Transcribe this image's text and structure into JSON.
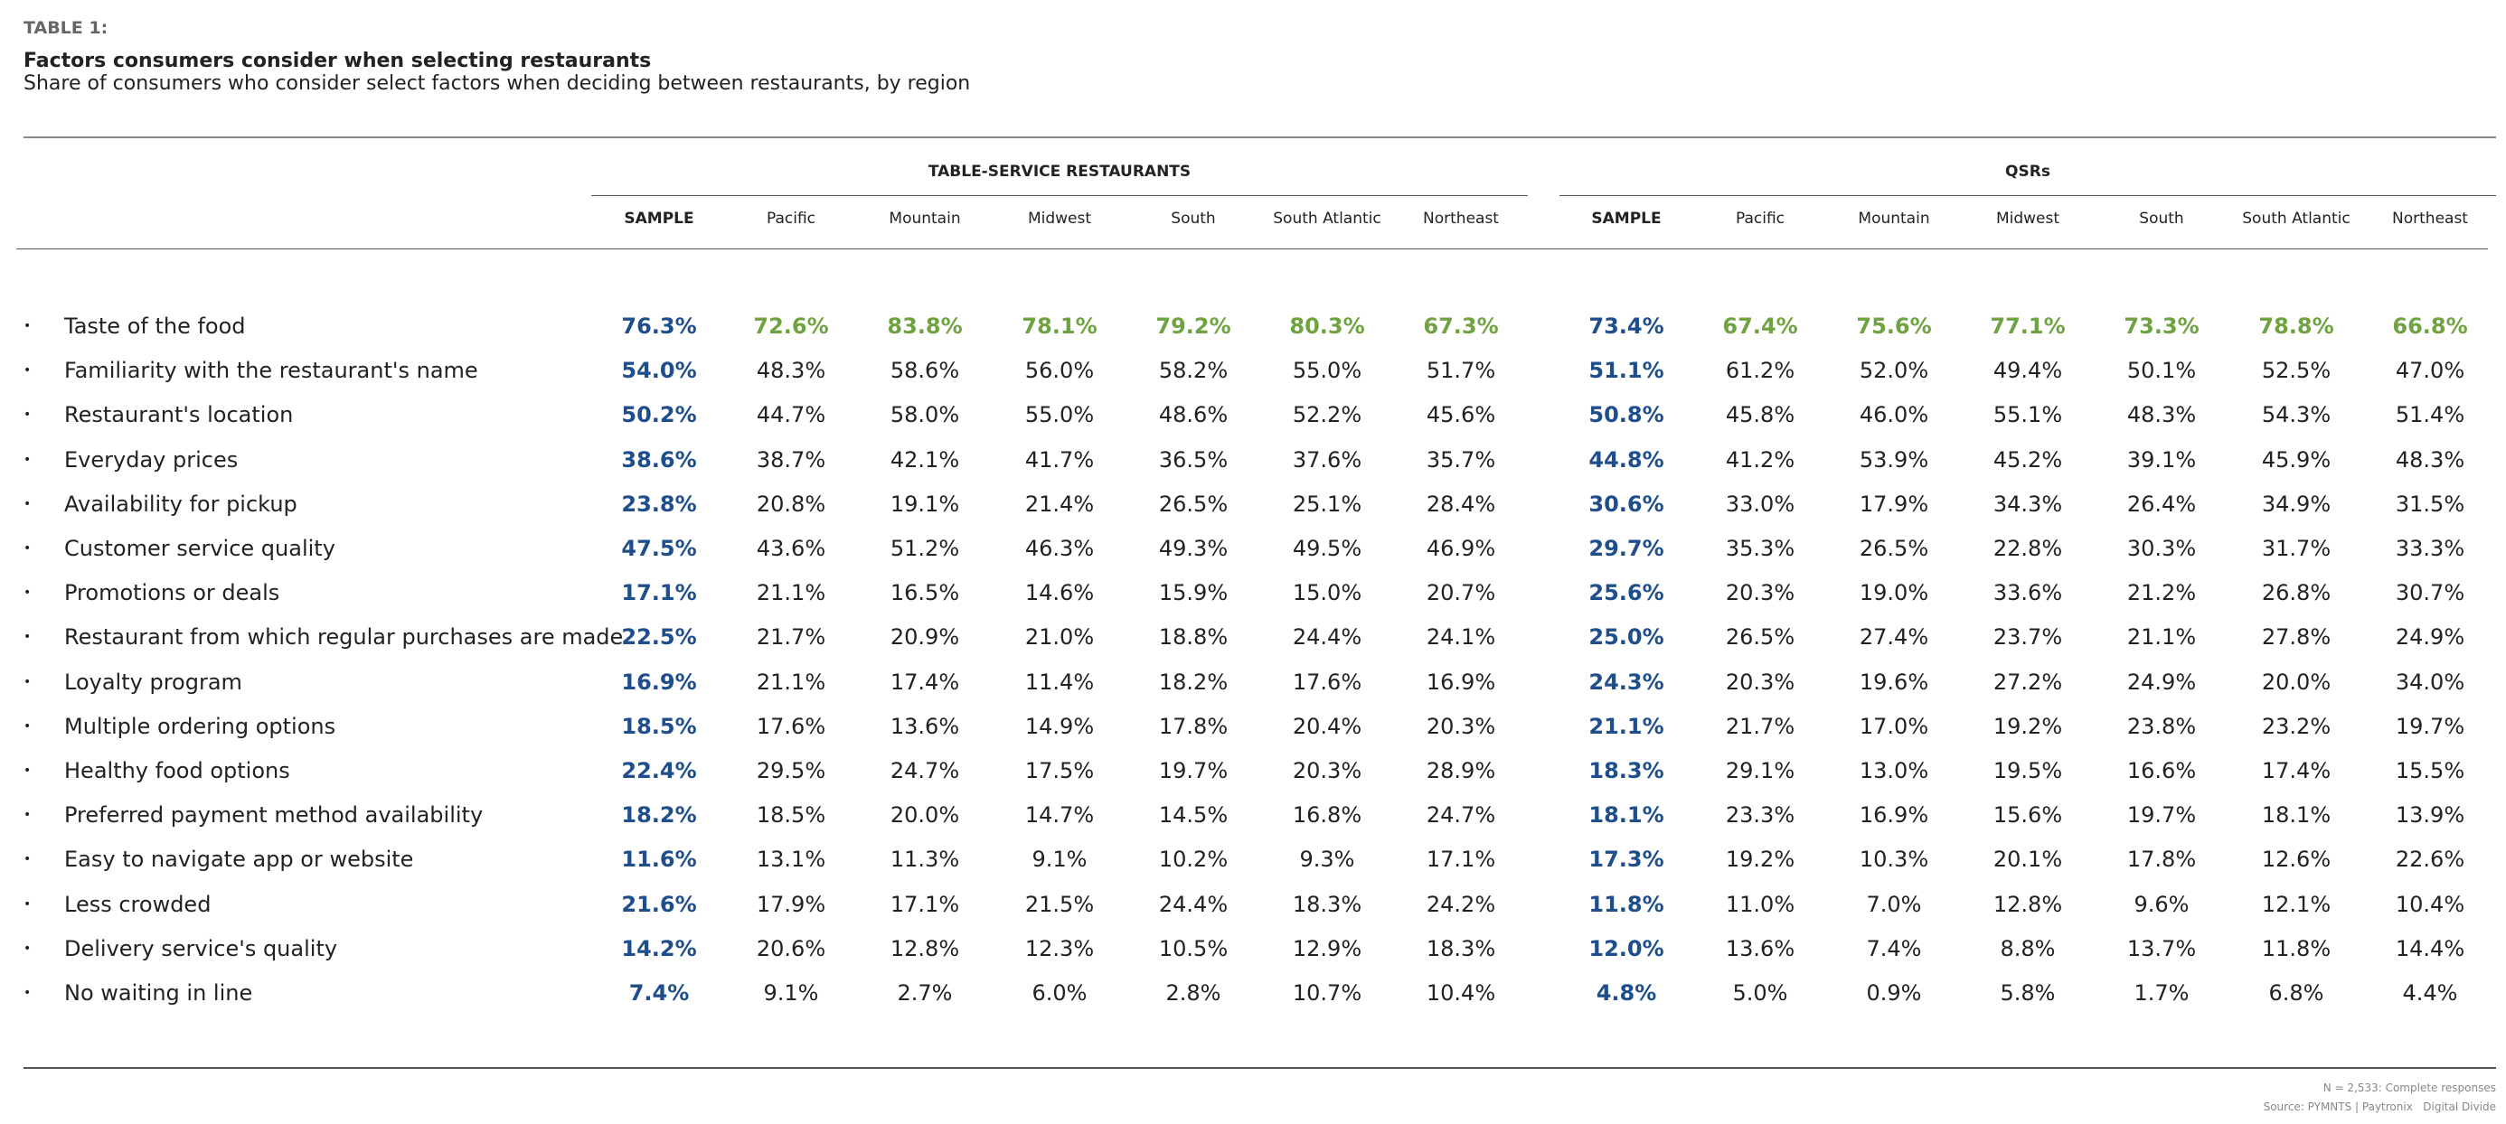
{
  "header": {
    "label": "TABLE 1:",
    "title": "Factors consumers consider when selecting restaurants",
    "subtitle": "Share of consumers who consider select factors when deciding between restaurants, by region"
  },
  "table": {
    "groups": [
      {
        "title": "TABLE-SERVICE RESTAURANTS",
        "columns": [
          "SAMPLE",
          "Pacific",
          "Mountain",
          "Midwest",
          "South",
          "South Atlantic",
          "Northeast"
        ]
      },
      {
        "title": "QSRs",
        "columns": [
          "SAMPLE",
          "Pacific",
          "Mountain",
          "Midwest",
          "South",
          "South Atlantic",
          "Northeast"
        ]
      }
    ],
    "rows": [
      {
        "label": "Taste of the food",
        "values": [
          "76.3%",
          "72.6%",
          "83.8%",
          "78.1%",
          "79.2%",
          "80.3%",
          "67.3%",
          "73.4%",
          "67.4%",
          "75.6%",
          "77.1%",
          "73.3%",
          "78.8%",
          "66.8%"
        ]
      },
      {
        "label": "Familiarity with the restaurant's name",
        "values": [
          "54.0%",
          "48.3%",
          "58.6%",
          "56.0%",
          "58.2%",
          "55.0%",
          "51.7%",
          "51.1%",
          "61.2%",
          "52.0%",
          "49.4%",
          "50.1%",
          "52.5%",
          "47.0%"
        ]
      },
      {
        "label": "Restaurant's location",
        "values": [
          "50.2%",
          "44.7%",
          "58.0%",
          "55.0%",
          "48.6%",
          "52.2%",
          "45.6%",
          "50.8%",
          "45.8%",
          "46.0%",
          "55.1%",
          "48.3%",
          "54.3%",
          "51.4%"
        ]
      },
      {
        "label": "Everyday prices",
        "values": [
          "38.6%",
          "38.7%",
          "42.1%",
          "41.7%",
          "36.5%",
          "37.6%",
          "35.7%",
          "44.8%",
          "41.2%",
          "53.9%",
          "45.2%",
          "39.1%",
          "45.9%",
          "48.3%"
        ]
      },
      {
        "label": "Availability for pickup",
        "values": [
          "23.8%",
          "20.8%",
          "19.1%",
          "21.4%",
          "26.5%",
          "25.1%",
          "28.4%",
          "30.6%",
          "33.0%",
          "17.9%",
          "34.3%",
          "26.4%",
          "34.9%",
          "31.5%"
        ]
      },
      {
        "label": "Customer service quality",
        "values": [
          "47.5%",
          "43.6%",
          "51.2%",
          "46.3%",
          "49.3%",
          "49.5%",
          "46.9%",
          "29.7%",
          "35.3%",
          "26.5%",
          "22.8%",
          "30.3%",
          "31.7%",
          "33.3%"
        ]
      },
      {
        "label": "Promotions or deals",
        "values": [
          "17.1%",
          "21.1%",
          "16.5%",
          "14.6%",
          "15.9%",
          "15.0%",
          "20.7%",
          "25.6%",
          "20.3%",
          "19.0%",
          "33.6%",
          "21.2%",
          "26.8%",
          "30.7%"
        ]
      },
      {
        "label": "Restaurant from which regular purchases are made",
        "values": [
          "22.5%",
          "21.7%",
          "20.9%",
          "21.0%",
          "18.8%",
          "24.4%",
          "24.1%",
          "25.0%",
          "26.5%",
          "27.4%",
          "23.7%",
          "21.1%",
          "27.8%",
          "24.9%"
        ]
      },
      {
        "label": "Loyalty program",
        "values": [
          "16.9%",
          "21.1%",
          "17.4%",
          "11.4%",
          "18.2%",
          "17.6%",
          "16.9%",
          "24.3%",
          "20.3%",
          "19.6%",
          "27.2%",
          "24.9%",
          "20.0%",
          "34.0%"
        ]
      },
      {
        "label": "Multiple ordering options",
        "values": [
          "18.5%",
          "17.6%",
          "13.6%",
          "14.9%",
          "17.8%",
          "20.4%",
          "20.3%",
          "21.1%",
          "21.7%",
          "17.0%",
          "19.2%",
          "23.8%",
          "23.2%",
          "19.7%"
        ]
      },
      {
        "label": "Healthy food options",
        "values": [
          "22.4%",
          "29.5%",
          "24.7%",
          "17.5%",
          "19.7%",
          "20.3%",
          "28.9%",
          "18.3%",
          "29.1%",
          "13.0%",
          "19.5%",
          "16.6%",
          "17.4%",
          "15.5%"
        ]
      },
      {
        "label": "Preferred payment method availability",
        "values": [
          "18.2%",
          "18.5%",
          "20.0%",
          "14.7%",
          "14.5%",
          "16.8%",
          "24.7%",
          "18.1%",
          "23.3%",
          "16.9%",
          "15.6%",
          "19.7%",
          "18.1%",
          "13.9%"
        ]
      },
      {
        "label": "Easy to navigate app or website",
        "values": [
          "11.6%",
          "13.1%",
          "11.3%",
          "9.1%",
          "10.2%",
          "9.3%",
          "17.1%",
          "17.3%",
          "19.2%",
          "10.3%",
          "20.1%",
          "17.8%",
          "12.6%",
          "22.6%"
        ]
      },
      {
        "label": "Less crowded",
        "values": [
          "21.6%",
          "17.9%",
          "17.1%",
          "21.5%",
          "24.4%",
          "18.3%",
          "24.2%",
          "11.8%",
          "11.0%",
          "7.0%",
          "12.8%",
          "9.6%",
          "12.1%",
          "10.4%"
        ]
      },
      {
        "label": "Delivery service's quality",
        "values": [
          "14.2%",
          "20.6%",
          "12.8%",
          "12.3%",
          "10.5%",
          "12.9%",
          "18.3%",
          "12.0%",
          "13.6%",
          "7.4%",
          "8.8%",
          "13.7%",
          "11.8%",
          "14.4%"
        ]
      },
      {
        "label": "No waiting in line",
        "values": [
          "7.4%",
          "9.1%",
          "2.7%",
          "6.0%",
          "2.8%",
          "10.7%",
          "10.4%",
          "4.8%",
          "5.0%",
          "0.9%",
          "5.8%",
          "1.7%",
          "6.8%",
          "4.4%"
        ]
      }
    ]
  },
  "footer": {
    "note": "N = 2,533: Complete responses",
    "source": "Source: PYMNTS | Paytronix   Digital Divide"
  }
}
